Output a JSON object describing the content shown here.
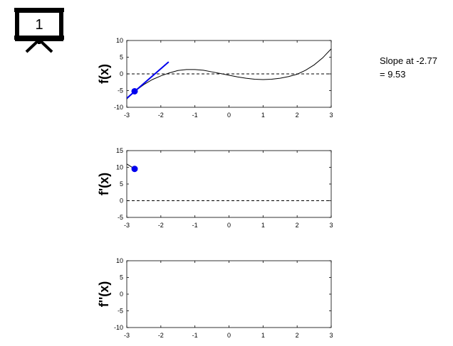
{
  "presentation_badge": {
    "number": "1",
    "icon": "presentation-board-icon"
  },
  "slope_readout": {
    "line1": "Slope at -2.77",
    "line2": "= 9.53"
  },
  "chart_data": [
    {
      "type": "line",
      "ylabel": "f(x)",
      "xlim": [
        -3,
        3
      ],
      "ylim": [
        -10,
        10
      ],
      "xticks": [
        "-3",
        "-2",
        "-1",
        "0",
        "1",
        "2",
        "3"
      ],
      "yticks": [
        "10",
        "5",
        "0",
        "-5",
        "-10"
      ],
      "series": [
        {
          "role": "function",
          "color": "#000000",
          "x": [
            -3,
            -2.75,
            -2.5,
            -2.25,
            -2,
            -1.75,
            -1.5,
            -1.25,
            -1,
            -0.75,
            -0.5,
            -0.25,
            0,
            0.25,
            0.5,
            0.75,
            1,
            1.25,
            1.5,
            1.75,
            2,
            2.25,
            2.5,
            2.75,
            3
          ],
          "y": [
            -7.5,
            -5.1,
            -3.2,
            -1.7,
            -0.6,
            0.3,
            1.0,
            1.3,
            1.3,
            1.1,
            0.6,
            0.1,
            -0.4,
            -0.9,
            -1.3,
            -1.6,
            -1.7,
            -1.6,
            -1.3,
            -0.8,
            -0.1,
            1.1,
            2.7,
            4.8,
            7.5
          ]
        },
        {
          "role": "tangent",
          "color": "#0000ee",
          "x": [
            -3,
            -1.77
          ],
          "y": [
            -7.3,
            3.6
          ]
        }
      ],
      "point": {
        "x": -2.77,
        "y": -5.2,
        "color": "#0000ee"
      },
      "zero_line": true
    },
    {
      "type": "scatter",
      "ylabel": "f'(x)",
      "xlim": [
        -3,
        3
      ],
      "ylim": [
        -5,
        15
      ],
      "xticks": [
        "-3",
        "-2",
        "-1",
        "0",
        "1",
        "2",
        "3"
      ],
      "yticks": [
        "15",
        "10",
        "5",
        "0",
        "-5"
      ],
      "series": [
        {
          "role": "derivative-trace",
          "color": "#000000",
          "x": [
            -3,
            -2.77
          ],
          "y": [
            11.0,
            9.53
          ]
        }
      ],
      "point": {
        "x": -2.77,
        "y": 9.53,
        "color": "#0000ee"
      },
      "zero_line": true
    },
    {
      "type": "line",
      "ylabel": "f''(x)",
      "xlim": [
        -3,
        3
      ],
      "ylim": [
        -10,
        10
      ],
      "xticks": [
        "-3",
        "-2",
        "-1",
        "0",
        "1",
        "2",
        "3"
      ],
      "yticks": [
        "10",
        "5",
        "0",
        "-5",
        "-10"
      ],
      "series": [],
      "zero_line": false
    }
  ]
}
